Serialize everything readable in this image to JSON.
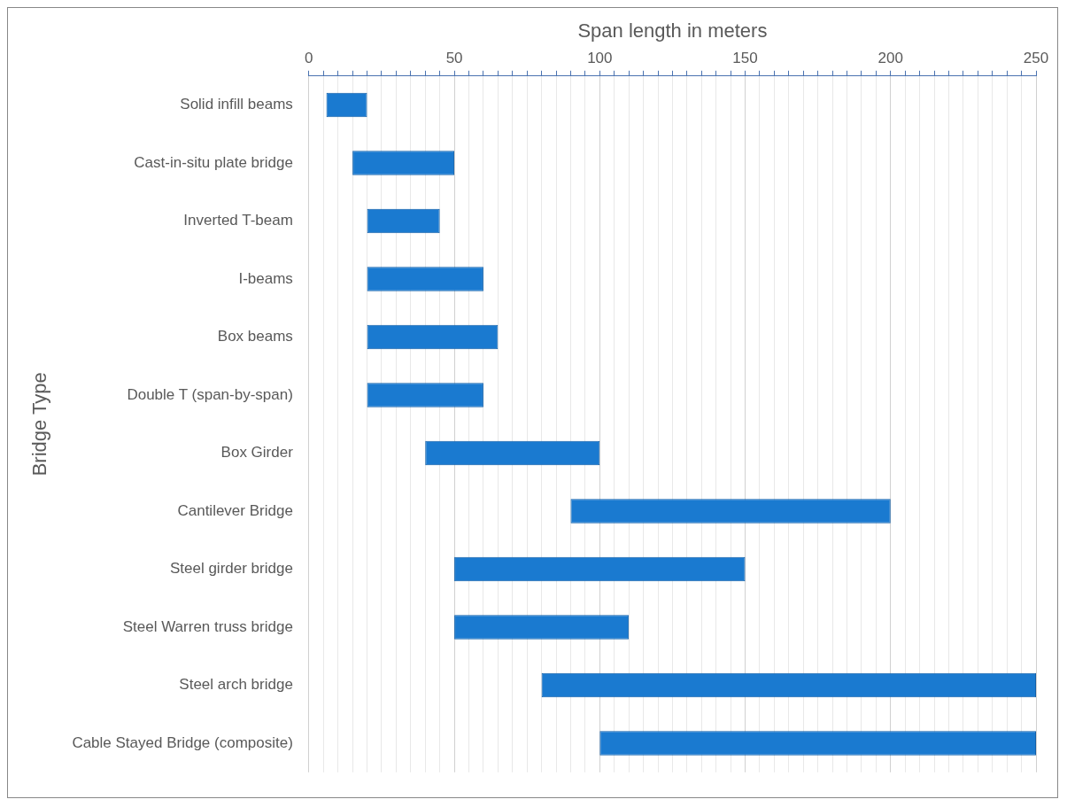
{
  "chart_data": {
    "type": "bar",
    "orientation": "horizontal",
    "xlabel": "Span length in meters",
    "ylabel": "Bridge Type",
    "categories": [
      "Solid infill beams",
      "Cast-in-situ plate bridge",
      "Inverted T-beam",
      "I-beams",
      "Box beams",
      "Double T (span-by-span)",
      "Box Girder",
      "Cantilever Bridge",
      "Steel girder bridge",
      "Steel Warren truss bridge",
      "Steel arch bridge",
      "Cable Stayed Bridge (composite)"
    ],
    "base": [
      6,
      15,
      20,
      20,
      20,
      20,
      40,
      90,
      50,
      50,
      80,
      100
    ],
    "values": [
      14,
      35,
      25,
      40,
      45,
      40,
      60,
      110,
      100,
      60,
      170,
      150
    ],
    "color": "#1a7ad0",
    "xlim": [
      0,
      250
    ],
    "xticks": [
      0,
      {
        "value": 5,
        "label": null
      },
      {
        "value": 10,
        "label": null
      },
      {
        "value": 15,
        "label": null
      },
      {
        "value": 20,
        "label": null
      },
      {
        "value": 25,
        "label": null
      },
      {
        "value": 30,
        "label": null
      },
      {
        "value": 35,
        "label": null
      },
      {
        "value": 40,
        "label": null
      },
      {
        "value": 45,
        "label": null
      },
      50,
      {
        "value": 55,
        "label": null
      },
      {
        "value": 60,
        "label": null
      },
      {
        "value": 65,
        "label": null
      },
      {
        "value": 70,
        "label": null
      },
      {
        "value": 75,
        "label": null
      },
      {
        "value": 80,
        "label": null
      },
      {
        "value": 85,
        "label": null
      },
      {
        "value": 90,
        "label": null
      },
      {
        "value": 95,
        "label": null
      },
      100,
      {
        "value": 105,
        "label": null
      },
      {
        "value": 110,
        "label": null
      },
      {
        "value": 115,
        "label": null
      },
      {
        "value": 120,
        "label": null
      },
      {
        "value": 125,
        "label": null
      },
      {
        "value": 130,
        "label": null
      },
      {
        "value": 135,
        "label": null
      },
      {
        "value": 140,
        "label": null
      },
      {
        "value": 145,
        "label": null
      },
      150,
      {
        "value": 155,
        "label": null
      },
      {
        "value": 160,
        "label": null
      },
      {
        "value": 165,
        "label": null
      },
      {
        "value": 170,
        "label": null
      },
      {
        "value": 175,
        "label": null
      },
      {
        "value": 180,
        "label": null
      },
      {
        "value": 185,
        "label": null
      },
      {
        "value": 190,
        "label": null
      },
      {
        "value": 195,
        "label": null
      },
      200,
      {
        "value": 205,
        "label": null
      },
      {
        "value": 210,
        "label": null
      },
      {
        "value": 215,
        "label": null
      },
      {
        "value": 220,
        "label": null
      },
      {
        "value": 225,
        "label": null
      },
      {
        "value": 230,
        "label": null
      },
      {
        "value": 235,
        "label": null
      },
      {
        "value": 240,
        "label": null
      },
      {
        "value": 245,
        "label": null
      },
      250
    ],
    "grid": "x"
  }
}
